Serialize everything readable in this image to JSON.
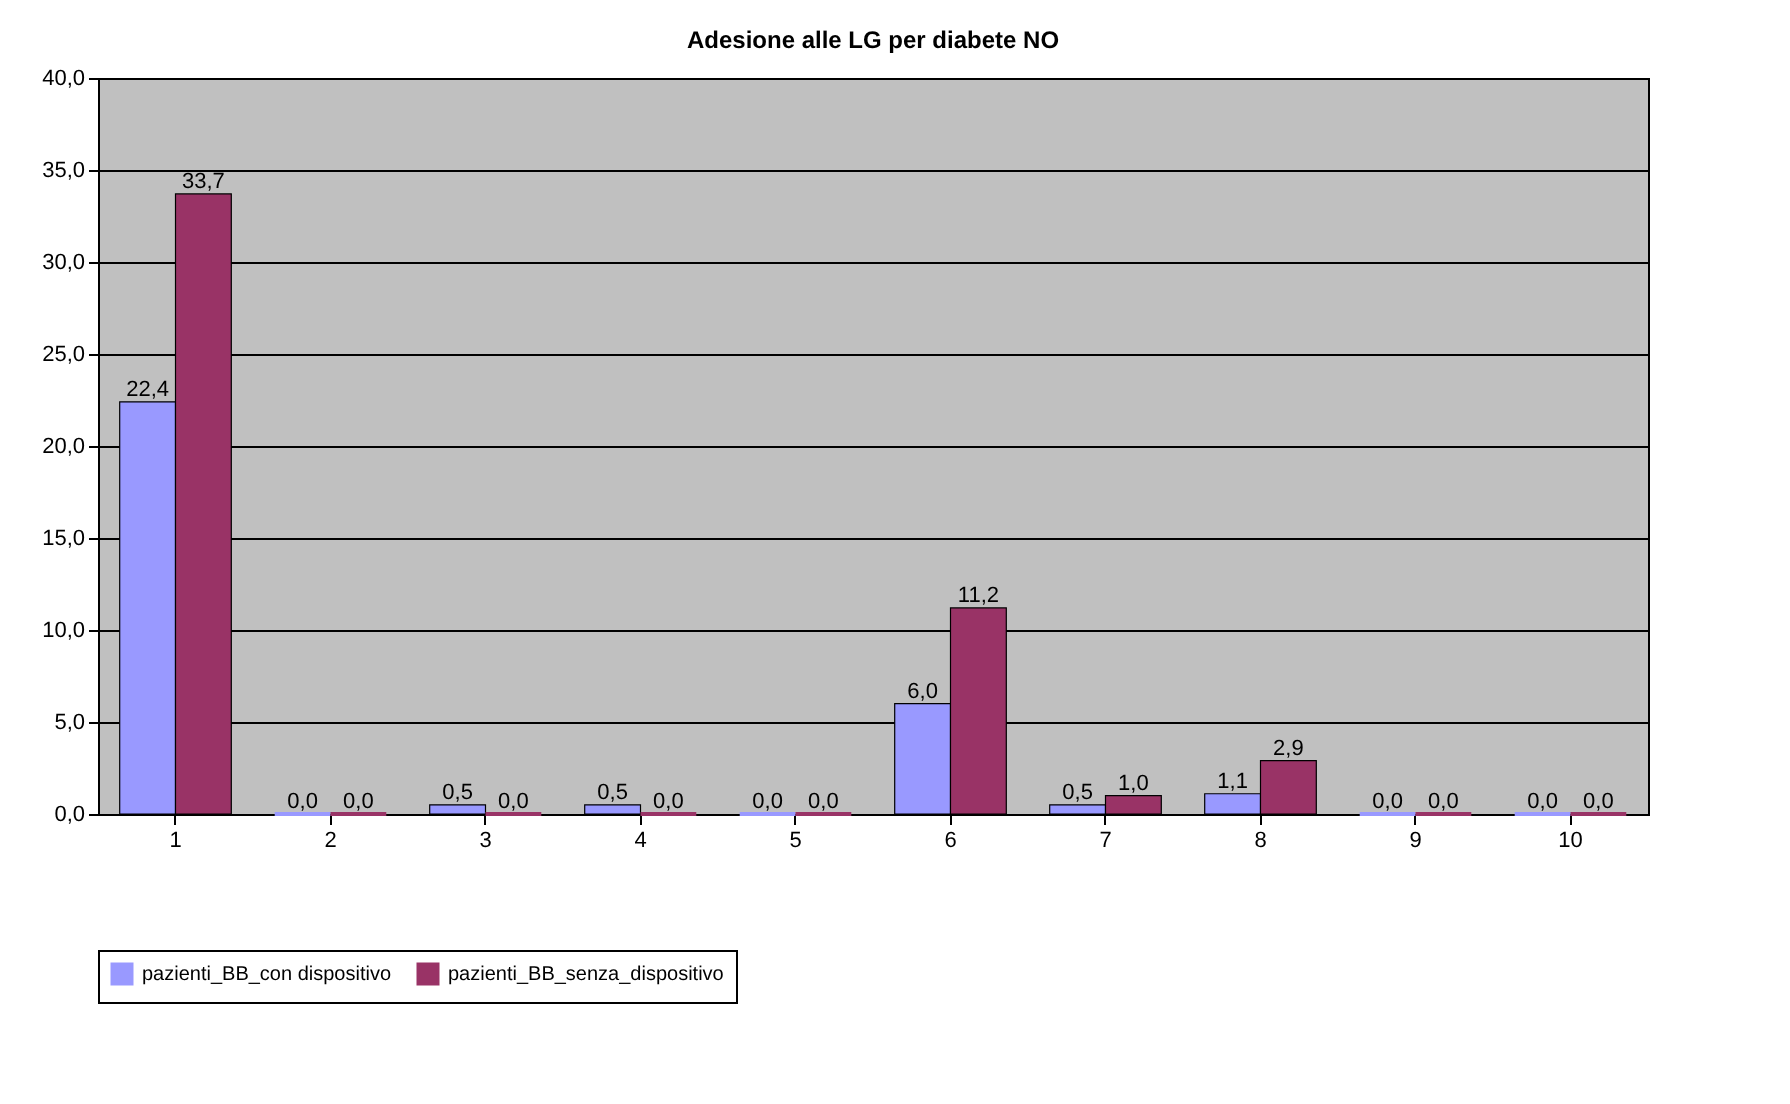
{
  "chart_data": {
    "type": "bar",
    "title": "Adesione alle LG per diabete NO",
    "categories": [
      "1",
      "2",
      "3",
      "4",
      "5",
      "6",
      "7",
      "8",
      "9",
      "10"
    ],
    "series": [
      {
        "name": "pazienti_BB_con dispositivo",
        "color": "#9999ff",
        "values": [
          22.4,
          0.0,
          0.5,
          0.5,
          0.0,
          6.0,
          0.5,
          1.1,
          0.0,
          0.0
        ],
        "value_labels": [
          "22,4",
          "0,0",
          "0,5",
          "0,5",
          "0,0",
          "6,0",
          "0,5",
          "1,1",
          "0,0",
          "0,0"
        ]
      },
      {
        "name": "pazienti_BB_senza_dispositivo",
        "color": "#993366",
        "values": [
          33.7,
          0.0,
          0.0,
          0.0,
          0.0,
          11.2,
          1.0,
          2.9,
          0.0,
          0.0
        ],
        "value_labels": [
          "33,7",
          "0,0",
          "0,0",
          "0,0",
          "0,0",
          "11,2",
          "1,0",
          "2,9",
          "0,0",
          "0,0"
        ]
      }
    ],
    "ylim": [
      0,
      40
    ],
    "yticks": [
      {
        "value": 0,
        "label": "0,0"
      },
      {
        "value": 5,
        "label": "5,0"
      },
      {
        "value": 10,
        "label": "10,0"
      },
      {
        "value": 15,
        "label": "15,0"
      },
      {
        "value": 20,
        "label": "20,0"
      },
      {
        "value": 25,
        "label": "25,0"
      },
      {
        "value": 30,
        "label": "30,0"
      },
      {
        "value": 35,
        "label": "35,0"
      },
      {
        "value": 40,
        "label": "40,0"
      }
    ],
    "grid": "y",
    "legend": "bottom"
  }
}
